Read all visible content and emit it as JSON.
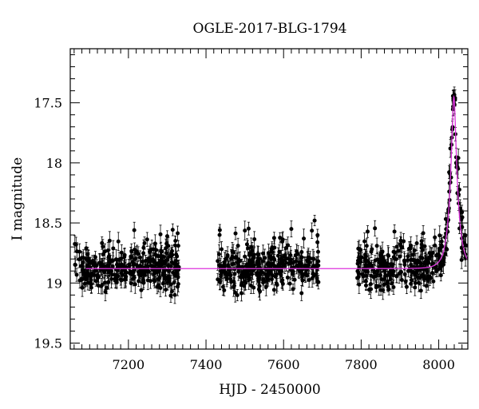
{
  "chart_data": {
    "type": "scatter",
    "title": "OGLE-2017-BLG-1794",
    "xlabel": "HJD - 2450000",
    "ylabel": "I magnitude",
    "xlim": [
      7050,
      8075
    ],
    "ylim": [
      19.55,
      17.05
    ],
    "y_inverted": true,
    "x_ticks": [
      7200,
      7400,
      7600,
      7800,
      8000
    ],
    "y_ticks": [
      17.5,
      18,
      18.5,
      19,
      19.5
    ],
    "grid": false,
    "legend": "none",
    "colors": {
      "points": "#000000",
      "model": "#dd33dd",
      "frame": "#000000"
    },
    "model": {
      "name": "",
      "baseline_mag": 18.88,
      "peak_time": 8039,
      "peak_mag": 17.45,
      "t_E": 20,
      "u0": 0.24
    },
    "observation_seasons": [
      {
        "start": 7060,
        "end": 7330
      },
      {
        "start": 7430,
        "end": 7690
      },
      {
        "start": 7790,
        "end": 8070
      }
    ],
    "data_points_sample": [
      {
        "x": 7065,
        "y": 18.68
      },
      {
        "x": 7090,
        "y": 18.92
      },
      {
        "x": 7130,
        "y": 18.85
      },
      {
        "x": 7180,
        "y": 18.97
      },
      {
        "x": 7215,
        "y": 18.56
      },
      {
        "x": 7265,
        "y": 18.72
      },
      {
        "x": 7300,
        "y": 18.61
      },
      {
        "x": 7435,
        "y": 18.6
      },
      {
        "x": 7500,
        "y": 18.78
      },
      {
        "x": 7560,
        "y": 18.9
      },
      {
        "x": 7620,
        "y": 18.55
      },
      {
        "x": 7680,
        "y": 18.48
      },
      {
        "x": 7820,
        "y": 18.85
      },
      {
        "x": 7900,
        "y": 18.78
      },
      {
        "x": 7990,
        "y": 18.62
      },
      {
        "x": 8030,
        "y": 17.88
      },
      {
        "x": 8038,
        "y": 17.47
      },
      {
        "x": 8045,
        "y": 18.0
      },
      {
        "x": 8055,
        "y": 18.38
      }
    ]
  }
}
